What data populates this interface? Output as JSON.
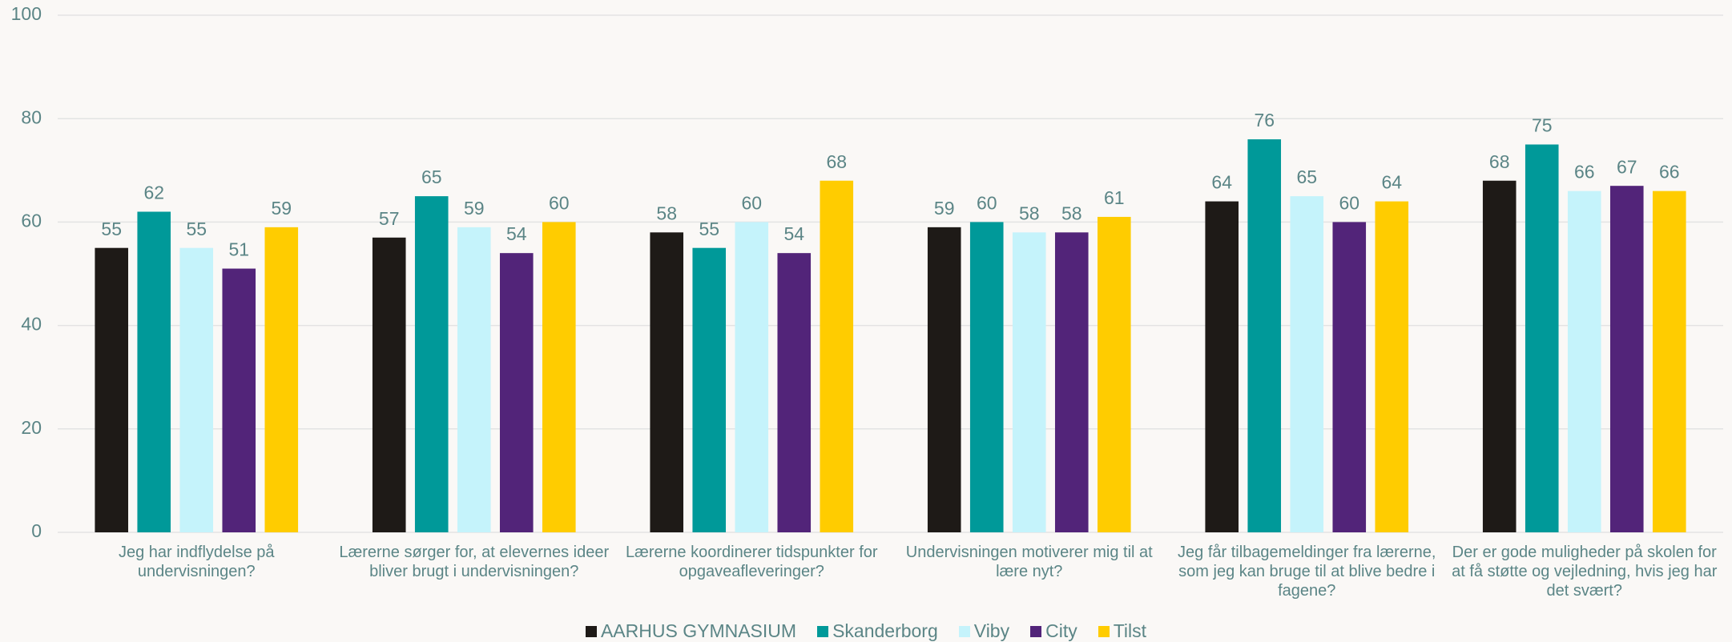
{
  "chart_data": {
    "type": "bar",
    "categories": [
      "Jeg har indflydelse på undervisningen?",
      "Lærerne sørger for, at elevernes ideer bliver brugt i undervisningen?",
      "Lærerne koordinerer tidspunkter for opgaveafleveringer?",
      "Undervisningen motiverer mig til at lære nyt?",
      "Jeg får tilbagemeldinger fra lærerne, som jeg kan bruge til at blive bedre i fagene?",
      "Der er gode muligheder på skolen for at få støtte og vejledning, hvis jeg har det svært?"
    ],
    "series": [
      {
        "name": "AARHUS GYMNASIUM",
        "color": "#1e1a17",
        "values": [
          55,
          57,
          58,
          59,
          64,
          68
        ]
      },
      {
        "name": "Skanderborg",
        "color": "#009999",
        "values": [
          62,
          65,
          55,
          60,
          76,
          75
        ]
      },
      {
        "name": "Viby",
        "color": "#c5f3fb",
        "values": [
          55,
          59,
          60,
          58,
          65,
          66
        ]
      },
      {
        "name": "City",
        "color": "#522479",
        "values": [
          51,
          54,
          54,
          58,
          60,
          67
        ]
      },
      {
        "name": "Tilst",
        "color": "#ffcc00",
        "values": [
          59,
          60,
          68,
          61,
          64,
          66
        ]
      }
    ],
    "ylim": [
      0,
      100
    ],
    "yticks": [
      0,
      20,
      40,
      60,
      80,
      100
    ],
    "grid": true,
    "legend": "bottom"
  }
}
